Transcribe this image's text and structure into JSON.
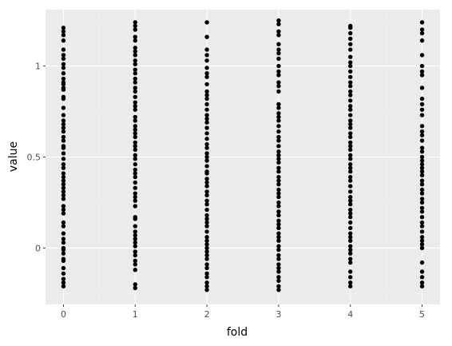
{
  "chart_data": {
    "type": "scatter",
    "title": "",
    "xlabel": "fold",
    "ylabel": "value",
    "x_ticks": [
      "0",
      "1",
      "2",
      "3",
      "4",
      "5"
    ],
    "y_ticks": [
      "0",
      "0.5",
      "1"
    ],
    "xlim": [
      -0.25,
      5.25
    ],
    "ylim": [
      -0.31,
      1.31
    ],
    "grid": true,
    "colors": {
      "panel": "#ebebeb",
      "grid_major": "#ffffff",
      "grid_minor": "#f3f3f3",
      "point": "#000000"
    },
    "points": [
      {
        "x": 0,
        "values": [
          1.21,
          1.19,
          1.17,
          1.14,
          1.09,
          1.06,
          1.04,
          1.01,
          0.99,
          0.96,
          0.93,
          0.91,
          0.9,
          0.88,
          0.87,
          0.83,
          0.82,
          0.77,
          0.73,
          0.7,
          0.68,
          0.66,
          0.64,
          0.61,
          0.59,
          0.56,
          0.55,
          0.52,
          0.49,
          0.46,
          0.44,
          0.41,
          0.39,
          0.37,
          0.35,
          0.33,
          0.31,
          0.29,
          0.27,
          0.23,
          0.21,
          0.19,
          0.14,
          0.12,
          0.08,
          0.05,
          0.03,
          0.0,
          -0.01,
          -0.03,
          -0.06,
          -0.07,
          -0.11,
          -0.14,
          -0.17,
          -0.19,
          -0.21
        ]
      },
      {
        "x": 1,
        "values": [
          1.24,
          1.22,
          1.2,
          1.16,
          1.14,
          1.1,
          1.08,
          1.06,
          1.03,
          1.01,
          0.98,
          0.96,
          0.93,
          0.91,
          0.88,
          0.86,
          0.83,
          0.8,
          0.78,
          0.76,
          0.72,
          0.7,
          0.67,
          0.65,
          0.63,
          0.61,
          0.58,
          0.56,
          0.54,
          0.51,
          0.49,
          0.46,
          0.43,
          0.41,
          0.39,
          0.36,
          0.33,
          0.3,
          0.28,
          0.26,
          0.23,
          0.17,
          0.16,
          0.12,
          0.09,
          0.07,
          0.05,
          0.03,
          0.01,
          -0.02,
          -0.04,
          -0.07,
          -0.09,
          -0.12,
          -0.2,
          -0.22
        ]
      },
      {
        "x": 2,
        "values": [
          1.24,
          1.16,
          1.09,
          1.06,
          1.03,
          0.99,
          0.96,
          0.94,
          0.9,
          0.86,
          0.84,
          0.82,
          0.79,
          0.76,
          0.73,
          0.71,
          0.69,
          0.66,
          0.63,
          0.6,
          0.57,
          0.55,
          0.52,
          0.5,
          0.48,
          0.45,
          0.42,
          0.41,
          0.38,
          0.36,
          0.34,
          0.31,
          0.29,
          0.26,
          0.24,
          0.21,
          0.18,
          0.16,
          0.14,
          0.12,
          0.09,
          0.06,
          0.04,
          0.02,
          0.0,
          -0.02,
          -0.04,
          -0.06,
          -0.09,
          -0.11,
          -0.14,
          -0.16,
          -0.19,
          -0.21,
          -0.23
        ]
      },
      {
        "x": 3,
        "values": [
          1.25,
          1.23,
          1.19,
          1.17,
          1.12,
          1.09,
          1.07,
          1.04,
          1.0,
          0.97,
          0.95,
          0.91,
          0.89,
          0.86,
          0.79,
          0.77,
          0.74,
          0.72,
          0.7,
          0.67,
          0.64,
          0.61,
          0.59,
          0.56,
          0.53,
          0.51,
          0.49,
          0.47,
          0.44,
          0.42,
          0.39,
          0.37,
          0.35,
          0.32,
          0.3,
          0.28,
          0.25,
          0.23,
          0.2,
          0.18,
          0.15,
          0.13,
          0.11,
          0.08,
          0.06,
          0.04,
          0.01,
          -0.01,
          -0.04,
          -0.06,
          -0.09,
          -0.11,
          -0.13,
          -0.16,
          -0.18,
          -0.21,
          -0.23
        ]
      },
      {
        "x": 4,
        "values": [
          1.22,
          1.21,
          1.18,
          1.15,
          1.12,
          1.09,
          1.05,
          1.02,
          1.0,
          0.97,
          0.94,
          0.91,
          0.89,
          0.86,
          0.84,
          0.81,
          0.78,
          0.76,
          0.73,
          0.7,
          0.68,
          0.66,
          0.63,
          0.61,
          0.58,
          0.56,
          0.54,
          0.51,
          0.49,
          0.46,
          0.44,
          0.42,
          0.39,
          0.37,
          0.34,
          0.31,
          0.28,
          0.26,
          0.24,
          0.21,
          0.19,
          0.17,
          0.14,
          0.11,
          0.08,
          0.06,
          0.04,
          0.01,
          -0.01,
          -0.03,
          -0.06,
          -0.08,
          -0.13,
          -0.16,
          -0.19,
          -0.21
        ]
      },
      {
        "x": 5,
        "values": [
          1.24,
          1.2,
          1.18,
          1.14,
          1.06,
          1.0,
          0.97,
          0.95,
          0.88,
          0.82,
          0.79,
          0.76,
          0.73,
          0.67,
          0.64,
          0.62,
          0.59,
          0.55,
          0.53,
          0.5,
          0.48,
          0.46,
          0.44,
          0.42,
          0.4,
          0.37,
          0.35,
          0.32,
          0.3,
          0.27,
          0.25,
          0.22,
          0.2,
          0.17,
          0.14,
          0.12,
          0.09,
          0.06,
          0.04,
          0.02,
          0.0,
          -0.08,
          -0.13,
          -0.16,
          -0.19,
          -0.21
        ]
      }
    ]
  }
}
